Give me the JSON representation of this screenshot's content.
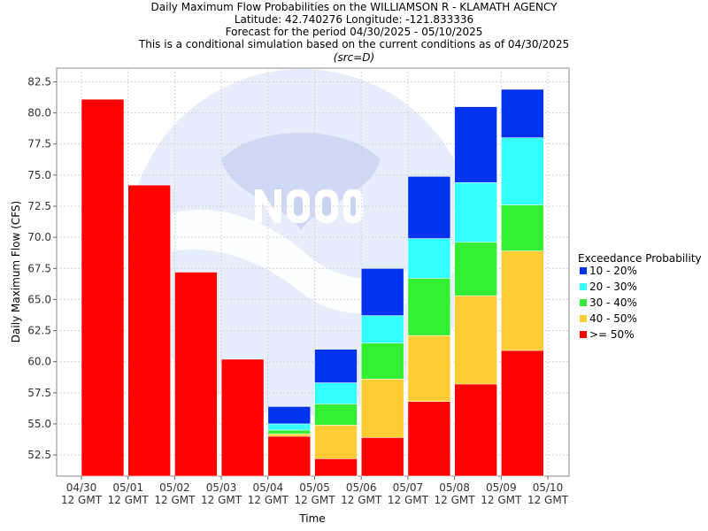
{
  "chart_data": {
    "type": "bar",
    "stacked": true,
    "title_lines": [
      "Daily Maximum Flow Probabilities on the WILLIAMSON R - KLAMATH AGENCY",
      "Latitude: 42.740276 Longitude: -121.833336",
      "Forecast for the period 04/30/2025 - 05/10/2025",
      "This is a conditional simulation based on the current conditions as of 04/30/2025"
    ],
    "subtitle": "(src=D)",
    "xlabel": "Time",
    "ylabel": "Daily Maximum Flow (CFS)",
    "ylim": [
      50.8,
      83.6
    ],
    "yticks": [
      52.5,
      55.0,
      57.5,
      60.0,
      62.5,
      65.0,
      67.5,
      70.0,
      72.5,
      75.0,
      77.5,
      80.0,
      82.5
    ],
    "xticks": [
      [
        "04/30",
        "12 GMT"
      ],
      [
        "05/01",
        "12 GMT"
      ],
      [
        "05/02",
        "12 GMT"
      ],
      [
        "05/03",
        "12 GMT"
      ],
      [
        "05/04",
        "12 GMT"
      ],
      [
        "05/05",
        "12 GMT"
      ],
      [
        "05/06",
        "12 GMT"
      ],
      [
        "05/07",
        "12 GMT"
      ],
      [
        "05/08",
        "12 GMT"
      ],
      [
        "05/09",
        "12 GMT"
      ],
      [
        "05/10",
        "12 GMT"
      ]
    ],
    "grid": true,
    "legend_title": "Exceedance Probability",
    "legend_placement": "right",
    "series": [
      {
        "name": "10 - 20%",
        "color": "#0033ee"
      },
      {
        "name": "20 - 30%",
        "color": "#33ffff"
      },
      {
        "name": "30 - 40%",
        "color": "#33ee33"
      },
      {
        "name": "40 - 50%",
        "color": "#ffcc33"
      },
      {
        "name": ">= 50%",
        "color": "#ff0000"
      }
    ],
    "bars": [
      {
        "date": "04/30",
        "ge50": 81.1
      },
      {
        "date": "05/01",
        "ge50": 74.2
      },
      {
        "date": "05/02",
        "ge50": 67.2
      },
      {
        "date": "05/03",
        "ge50": 60.2
      },
      {
        "date": "05/04",
        "ge50": 54.0,
        "p40_50": 54.2,
        "p30_40": 54.5,
        "p20_30": 55.0,
        "p10_20": 56.4
      },
      {
        "date": "05/05",
        "ge50": 52.2,
        "p40_50": 54.9,
        "p30_40": 56.6,
        "p20_30": 58.3,
        "p10_20": 61.0
      },
      {
        "date": "05/06",
        "ge50": 53.9,
        "p40_50": 58.6,
        "p30_40": 61.5,
        "p20_30": 63.7,
        "p10_20": 67.5
      },
      {
        "date": "05/07",
        "ge50": 56.8,
        "p40_50": 62.1,
        "p30_40": 66.7,
        "p20_30": 69.9,
        "p10_20": 74.9
      },
      {
        "date": "05/08",
        "ge50": 58.2,
        "p40_50": 65.3,
        "p30_40": 69.6,
        "p20_30": 74.4,
        "p10_20": 80.5
      },
      {
        "date": "05/09",
        "ge50": 60.9,
        "p40_50": 68.9,
        "p30_40": 72.6,
        "p20_30": 78.0,
        "p10_20": 81.9
      }
    ]
  }
}
